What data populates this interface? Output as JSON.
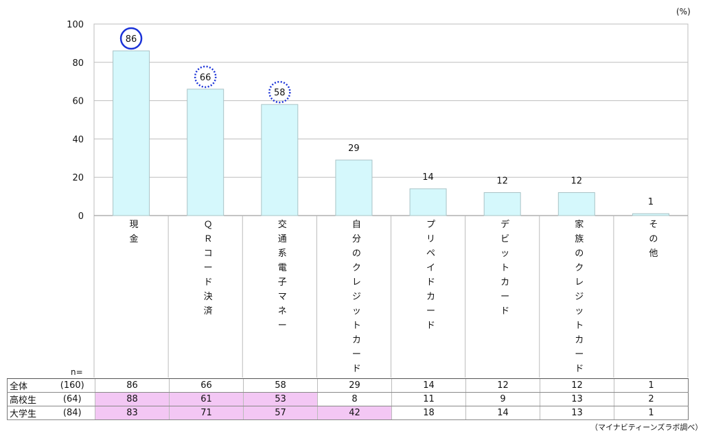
{
  "unit_label": "(%)",
  "n_label": "n=",
  "source": "（マイナビティーンズラボ調べ）",
  "colors": {
    "bar_fill": "#d5f8fc",
    "bar_stroke": "#a9c3c6",
    "circle": "#1a32d8",
    "highlight": "#f3c7f4"
  },
  "chart_data": {
    "type": "bar",
    "ylim": [
      0,
      100
    ],
    "yticks": [
      0,
      20,
      40,
      60,
      80,
      100
    ],
    "grid": true,
    "categories": [
      "現金",
      "ＱＲコード決済",
      "交通系電子マネー",
      "自分のクレジットカード",
      "プリペイドカード",
      "デビットカード",
      "家族のクレジットカード",
      "その他"
    ],
    "values": [
      86,
      66,
      58,
      29,
      14,
      12,
      12,
      1
    ],
    "circled": [
      {
        "index": 0,
        "style": "solid"
      },
      {
        "index": 1,
        "style": "dotted"
      },
      {
        "index": 2,
        "style": "dotted"
      }
    ]
  },
  "table": {
    "rows": [
      {
        "group": "全体",
        "n": "(160)",
        "values": [
          86,
          66,
          58,
          29,
          14,
          12,
          12,
          1
        ],
        "highlight": [
          false,
          false,
          false,
          false,
          false,
          false,
          false,
          false
        ]
      },
      {
        "group": "高校生",
        "n": "(64)",
        "values": [
          88,
          61,
          53,
          8,
          11,
          9,
          13,
          2
        ],
        "highlight": [
          true,
          true,
          true,
          false,
          false,
          false,
          false,
          false
        ]
      },
      {
        "group": "大学生",
        "n": "(84)",
        "values": [
          83,
          71,
          57,
          42,
          18,
          14,
          13,
          1
        ],
        "highlight": [
          true,
          true,
          true,
          true,
          false,
          false,
          false,
          false
        ]
      }
    ]
  }
}
